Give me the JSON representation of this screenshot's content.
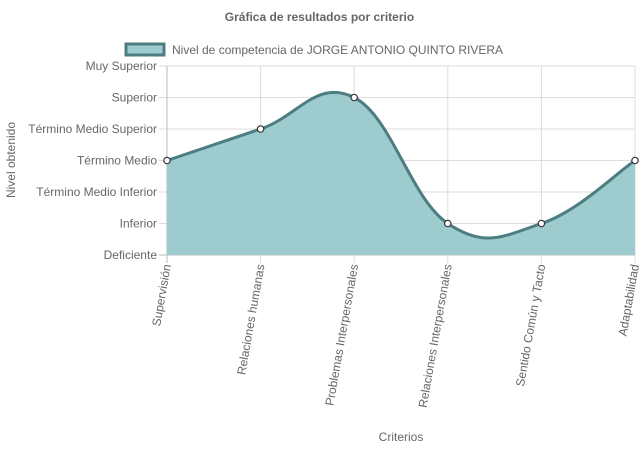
{
  "chart_data": {
    "type": "area",
    "title": "Gráfica de resultados por criterio",
    "xlabel": "Criterios",
    "ylabel": "Nivel obtenido",
    "categories": [
      "Supervisión",
      "Relaciones humanas",
      "Problemas Interpersonales",
      "Relaciones Interpersonales",
      "Sentido Común y Tacto",
      "Adaptabilidad"
    ],
    "y_levels": [
      "Deficiente",
      "Inferior",
      "Término Medio Inferior",
      "Término Medio",
      "Término Medio Superior",
      "Superior",
      "Muy Superior"
    ],
    "ylim": [
      0,
      6
    ],
    "series": [
      {
        "name": "Nivel de competencia de JORGE ANTONIO QUINTO RIVERA",
        "values": [
          3,
          4,
          5,
          1,
          1,
          3
        ]
      }
    ],
    "legend_position": "top",
    "grid": true,
    "colors": {
      "fill": "#9ecbce",
      "line": "#4c7d80",
      "grid": "#dddddd",
      "text": "#666666"
    }
  }
}
